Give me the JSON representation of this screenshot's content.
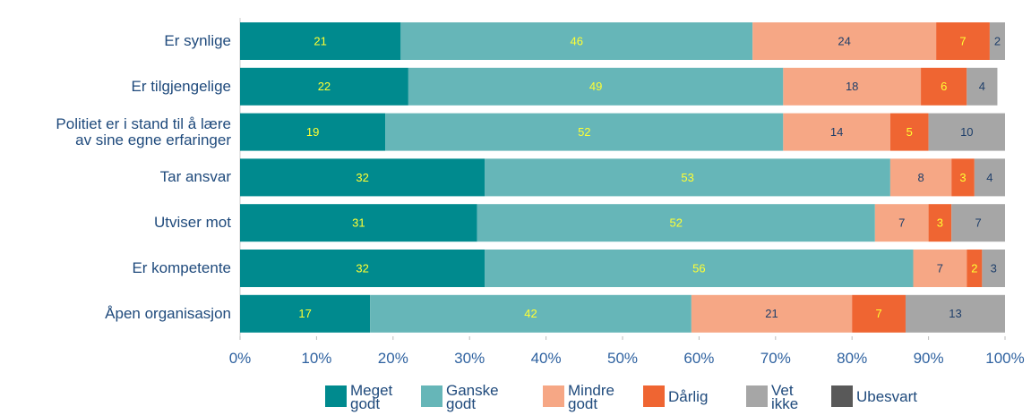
{
  "chart_data": {
    "type": "stacked_barh",
    "categories": [
      "Er synlige",
      "Er tilgjengelige",
      "Politiet er i stand til å lære\nav sine egne erfaringer",
      "Tar ansvar",
      "Utviser mot",
      "Er kompetente",
      "Åpen organisasjon"
    ],
    "series": [
      {
        "name": "Meget\ngodt",
        "color": "#008a8e",
        "label_color": "#ffff33",
        "values": [
          21,
          22,
          19,
          32,
          31,
          32,
          17
        ]
      },
      {
        "name": "Ganske\ngodt",
        "color": "#66b6b8",
        "label_color": "#ffff33",
        "values": [
          46,
          49,
          52,
          53,
          52,
          56,
          42
        ]
      },
      {
        "name": "Mindre\ngodt",
        "color": "#f6a785",
        "label_color": "#1f3f6a",
        "values": [
          24,
          18,
          14,
          8,
          7,
          7,
          21
        ]
      },
      {
        "name": "Dårlig",
        "color": "#ef6532",
        "label_color": "#ffff33",
        "values": [
          7,
          6,
          5,
          3,
          3,
          2,
          7
        ]
      },
      {
        "name": "Vet\nikke",
        "color": "#a6a6a6",
        "label_color": "#1f3f6a",
        "values": [
          2,
          4,
          10,
          4,
          7,
          3,
          13
        ]
      },
      {
        "name": "Ubesvart",
        "color": "#595959",
        "label_color": "#ffffff",
        "values": [
          0,
          0,
          0,
          0,
          0,
          0,
          0
        ]
      }
    ],
    "xlim": [
      0,
      100
    ],
    "xticks": [
      {
        "value": 0,
        "label": "0%"
      },
      {
        "value": 10,
        "label": "10%"
      },
      {
        "value": 20,
        "label": "20%"
      },
      {
        "value": 30,
        "label": "30%"
      },
      {
        "value": 40,
        "label": "40%"
      },
      {
        "value": 50,
        "label": "50%"
      },
      {
        "value": 60,
        "label": "60%"
      },
      {
        "value": 70,
        "label": "70%"
      },
      {
        "value": 80,
        "label": "80%"
      },
      {
        "value": 90,
        "label": "90%"
      },
      {
        "value": 100,
        "label": "100%"
      }
    ]
  }
}
